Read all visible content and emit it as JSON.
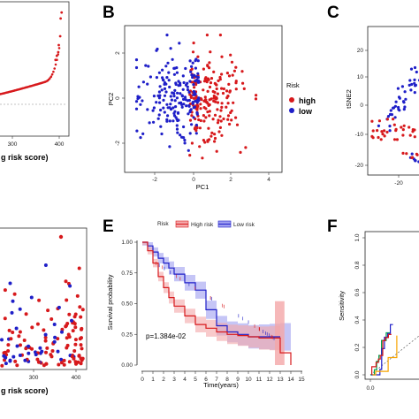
{
  "panels": {
    "A": {
      "xlabel": "g risk score)",
      "xticks": [
        "300",
        "400"
      ]
    },
    "B": {
      "letter": "B",
      "xlabel": "PC1",
      "ylabel": "PC2",
      "xticks": [
        "-2",
        "0",
        "2",
        "4"
      ],
      "yticks": [
        "-2",
        "0",
        "2"
      ],
      "legend_title": "Risk",
      "legend": [
        "high",
        "low"
      ]
    },
    "C": {
      "letter": "C",
      "ylabel": "tSNE2",
      "yticks": [
        "20",
        "10",
        "0",
        "-10",
        "-20"
      ],
      "xticks": [
        "-20"
      ]
    },
    "D": {
      "xlabel": "g risk score)",
      "xticks": [
        "300",
        "400"
      ]
    },
    "E": {
      "letter": "E",
      "xlabel": "Time(years)",
      "ylabel": "Survival probability",
      "legend_title": "Risk",
      "legend": [
        "High risk",
        "Low risk"
      ],
      "yticks": [
        "1.00",
        "0.75",
        "0.50",
        "0.25",
        "0.00"
      ],
      "xticks": [
        "0",
        "1",
        "2",
        "3",
        "4",
        "5",
        "6",
        "7",
        "8",
        "9",
        "10",
        "11",
        "12",
        "13",
        "14",
        "15"
      ],
      "pvalue": "p=1.384e-02"
    },
    "F": {
      "letter": "F",
      "ylabel": "Sensitivity",
      "yticks": [
        "1.0",
        "0.8",
        "0.6",
        "0.4",
        "0.2",
        "0.0"
      ],
      "xticks": [
        "0.0"
      ]
    }
  },
  "colors": {
    "high": "#d7191c",
    "low": "#1f1fc8",
    "high_band": "#f4a6a8",
    "low_band": "#9e9ef0"
  },
  "chart_data": [
    {
      "panel": "A",
      "type": "line",
      "x": [
        230,
        250,
        270,
        290,
        300,
        320,
        340,
        360,
        380,
        390,
        395,
        400,
        405
      ],
      "y": [
        0.1,
        0.14,
        0.18,
        0.23,
        0.26,
        0.31,
        0.37,
        0.45,
        0.58,
        0.68,
        0.8,
        0.95,
        1.55
      ]
    },
    {
      "panel": "B",
      "type": "scatter",
      "xlim": [
        -3,
        4.5
      ],
      "ylim": [
        -3,
        3
      ],
      "series": [
        {
          "name": "high",
          "n": 190,
          "center": [
            0.9,
            -0.1
          ]
        },
        {
          "name": "low",
          "n": 190,
          "center": [
            -1.0,
            0.1
          ]
        }
      ]
    },
    {
      "panel": "E",
      "type": "line",
      "xlim": [
        0,
        15
      ],
      "ylim": [
        0,
        1
      ],
      "series": [
        {
          "name": "High risk",
          "x": [
            0,
            0.5,
            1,
            1.5,
            2,
            2.5,
            3,
            4,
            5,
            6,
            7,
            8,
            9,
            10,
            11,
            12,
            13,
            14
          ],
          "y": [
            1,
            0.93,
            0.83,
            0.72,
            0.63,
            0.55,
            0.48,
            0.4,
            0.33,
            0.3,
            0.27,
            0.25,
            0.24,
            0.23,
            0.22,
            0.22,
            0.1,
            0.0
          ]
        },
        {
          "name": "Low risk",
          "x": [
            0,
            0.5,
            1,
            1.5,
            2,
            2.5,
            3,
            4,
            5,
            6,
            7,
            8,
            9,
            10,
            11,
            12,
            13
          ],
          "y": [
            1,
            0.97,
            0.92,
            0.87,
            0.83,
            0.79,
            0.74,
            0.67,
            0.61,
            0.45,
            0.32,
            0.27,
            0.25,
            0.23,
            0.23,
            0.23,
            0.23
          ]
        }
      ]
    }
  ]
}
